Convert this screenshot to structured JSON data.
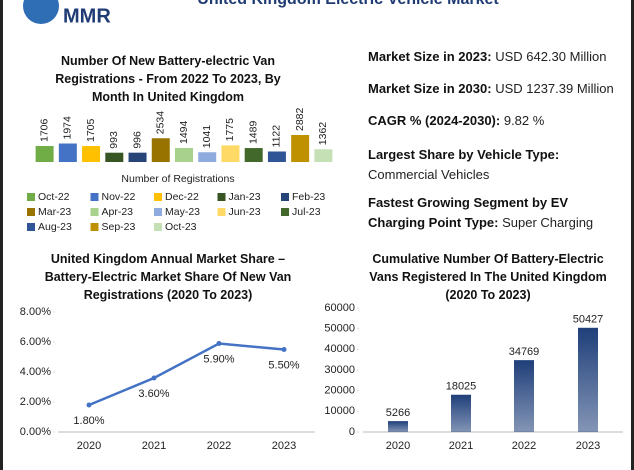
{
  "header": {
    "logo": "MMR",
    "title": "United Kingdom Electric Vehicle Market"
  },
  "stats": [
    {
      "label": "Market Size in 2023:",
      "value": "USD 642.30 Million"
    },
    {
      "label": "Market Size in 2030:",
      "value": "USD 1237.39 Million"
    },
    {
      "label": "CAGR % (2024-2030):",
      "value": "9.82 %"
    },
    {
      "label": "Largest Share by Vehicle Type:",
      "value": "Commercial Vehicles"
    },
    {
      "label": "Fastest Growing Segment by EV Charging Point Type:",
      "value": "Super Charging"
    }
  ],
  "chart_data": [
    {
      "type": "bar",
      "title": "Number Of New Battery-electric Van Registrations - From 2022 To 2023, By Month In United Kingdom",
      "xlabel": "Number of Registrations",
      "categories": [
        "Oct-22",
        "Nov-22",
        "Dec-22",
        "Jan-23",
        "Feb-23",
        "Mar-23",
        "Apr-23",
        "May-23",
        "Jun-23",
        "Jul-23",
        "Aug-23",
        "Sep-23",
        "Oct-23"
      ],
      "values": [
        1706,
        1974,
        1705,
        993,
        996,
        2534,
        1494,
        1041,
        1775,
        1489,
        1122,
        2882,
        1362
      ],
      "colors": [
        "#70ad47",
        "#4472c4",
        "#ffc000",
        "#375623",
        "#264478",
        "#997300",
        "#a9d18e",
        "#8faadc",
        "#ffd966",
        "#43682b",
        "#2f5597",
        "#bf9000",
        "#c5e0b4"
      ],
      "legend": true
    },
    {
      "type": "line",
      "title": "United Kingdom Annual Market Share – Battery-Electric Market Share Of New Van Registrations (2020 To 2023)",
      "categories": [
        "2020",
        "2021",
        "2022",
        "2023"
      ],
      "values": [
        1.8,
        3.6,
        5.9,
        5.5
      ],
      "value_labels": [
        "1.80%",
        "3.60%",
        "5.90%",
        "5.50%"
      ],
      "color": "#4472c4",
      "ylim": [
        0,
        8
      ],
      "yticks": [
        {
          "value": 0,
          "label": "0.00%"
        },
        {
          "value": 2,
          "label": "2.00%"
        },
        {
          "value": 4,
          "label": "4.00%"
        },
        {
          "value": 6,
          "label": "6.00%"
        },
        {
          "value": 8,
          "label": "8.00%"
        }
      ]
    },
    {
      "type": "bar",
      "title": "Cumulative Number Of Battery-Electric Vans Registered In The United Kingdom (2020 To 2023)",
      "categories": [
        "2020",
        "2021",
        "2022",
        "2023"
      ],
      "values": [
        5266,
        18025,
        34769,
        50427
      ],
      "color": "#1f3f7a",
      "ylim": [
        0,
        60000
      ],
      "yticks": [
        0,
        10000,
        20000,
        30000,
        40000,
        50000,
        60000
      ]
    }
  ]
}
